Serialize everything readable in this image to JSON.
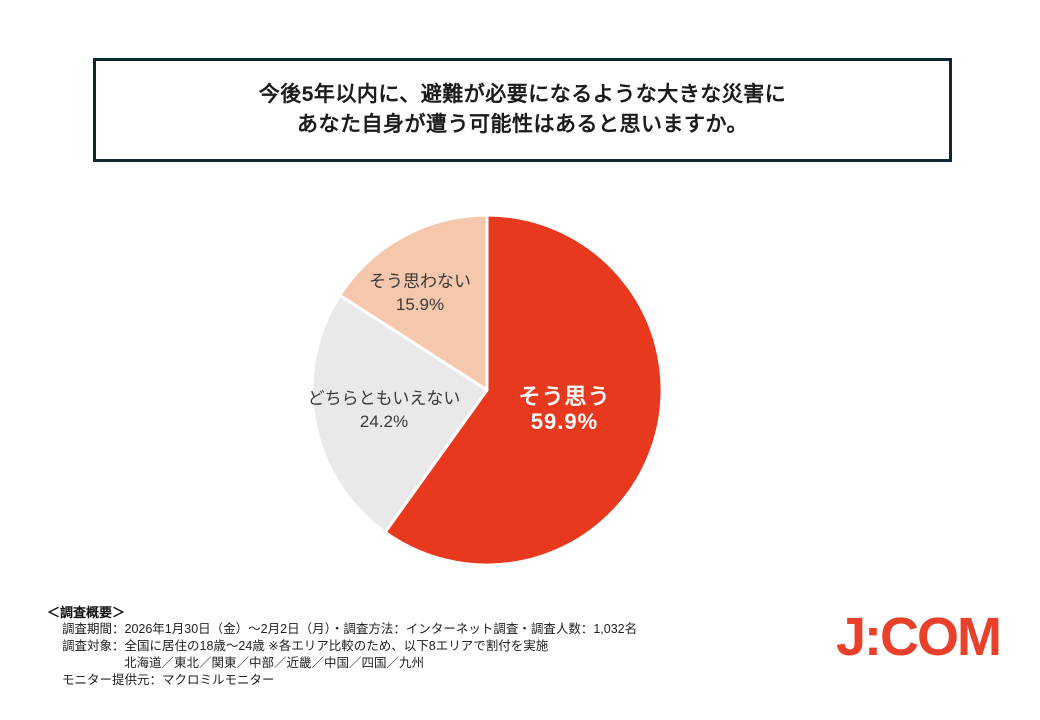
{
  "title": {
    "line1": "今後5年以内に、避難が必要になるような大きな災害に",
    "line2": "あなた自身が遭う可能性はあると思いますか。",
    "border_color": "#0d2733"
  },
  "chart_data": {
    "type": "pie",
    "title": "今後5年以内に、避難が必要になるような大きな災害にあなた自身が遭う可能性はあると思いますか。",
    "start_angle_deg": 0,
    "direction": "clockwise",
    "separator_color": "#ffffff",
    "slices": [
      {
        "label": "そう思う",
        "value": 59.9,
        "display": "59.9%",
        "color": "#e8391e",
        "label_color": "#ffffff"
      },
      {
        "label": "どちらともいえない",
        "value": 24.2,
        "display": "24.2%",
        "color": "#e9e9e9",
        "label_color": "#3a3a3a"
      },
      {
        "label": "そう思わない",
        "value": 15.9,
        "display": "15.9%",
        "color": "#f5c7ad",
        "label_color": "#3a3a3a"
      }
    ]
  },
  "survey_overview": {
    "heading": "＜調査概要＞",
    "line1": "調査期間：2026年1月30日（金）～2月2日（月）・調査方法：インターネット調査・調査人数：1,032名",
    "line2": "調査対象：全国に居住の18歳～24歳 ※各エリア比較のため、以下8エリアで割付を実施",
    "line3": "北海道／東北／関東／中部／近畿／中国／四国／九州",
    "line4": "モニター提供元：マクロミルモニター"
  },
  "logo": {
    "text": "J:COM",
    "color": "#e8402a"
  }
}
